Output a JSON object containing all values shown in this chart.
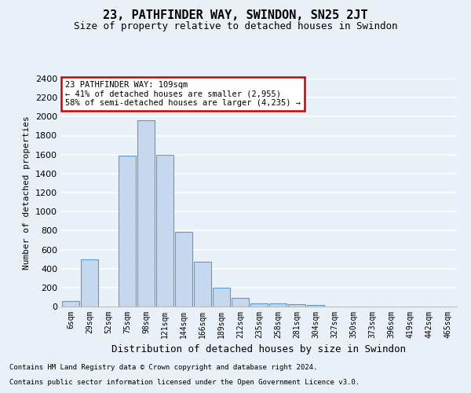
{
  "title": "23, PATHFINDER WAY, SWINDON, SN25 2JT",
  "subtitle": "Size of property relative to detached houses in Swindon",
  "xlabel": "Distribution of detached houses by size in Swindon",
  "ylabel": "Number of detached properties",
  "categories": [
    "6sqm",
    "29sqm",
    "52sqm",
    "75sqm",
    "98sqm",
    "121sqm",
    "144sqm",
    "166sqm",
    "189sqm",
    "212sqm",
    "235sqm",
    "258sqm",
    "281sqm",
    "304sqm",
    "327sqm",
    "350sqm",
    "373sqm",
    "396sqm",
    "419sqm",
    "442sqm",
    "465sqm"
  ],
  "values": [
    60,
    500,
    0,
    1590,
    1960,
    1600,
    790,
    470,
    195,
    95,
    35,
    30,
    25,
    20,
    0,
    0,
    0,
    0,
    0,
    0,
    0
  ],
  "bar_color": "#c5d8ed",
  "bar_edge_color": "#5b9bd5",
  "ylim": [
    0,
    2400
  ],
  "yticks": [
    0,
    200,
    400,
    600,
    800,
    1000,
    1200,
    1400,
    1600,
    1800,
    2000,
    2200,
    2400
  ],
  "annotation_line1": "23 PATHFINDER WAY: 109sqm",
  "annotation_line2": "← 41% of detached houses are smaller (2,955)",
  "annotation_line3": "58% of semi-detached houses are larger (4,235) →",
  "annotation_box_color": "#ffffff",
  "annotation_box_edge_color": "#cc0000",
  "footnote1": "Contains HM Land Registry data © Crown copyright and database right 2024.",
  "footnote2": "Contains public sector information licensed under the Open Government Licence v3.0.",
  "background_color": "#e8f0f8",
  "plot_bg_color": "#e8f0f8",
  "grid_color": "#ffffff",
  "title_fontsize": 11,
  "subtitle_fontsize": 9
}
